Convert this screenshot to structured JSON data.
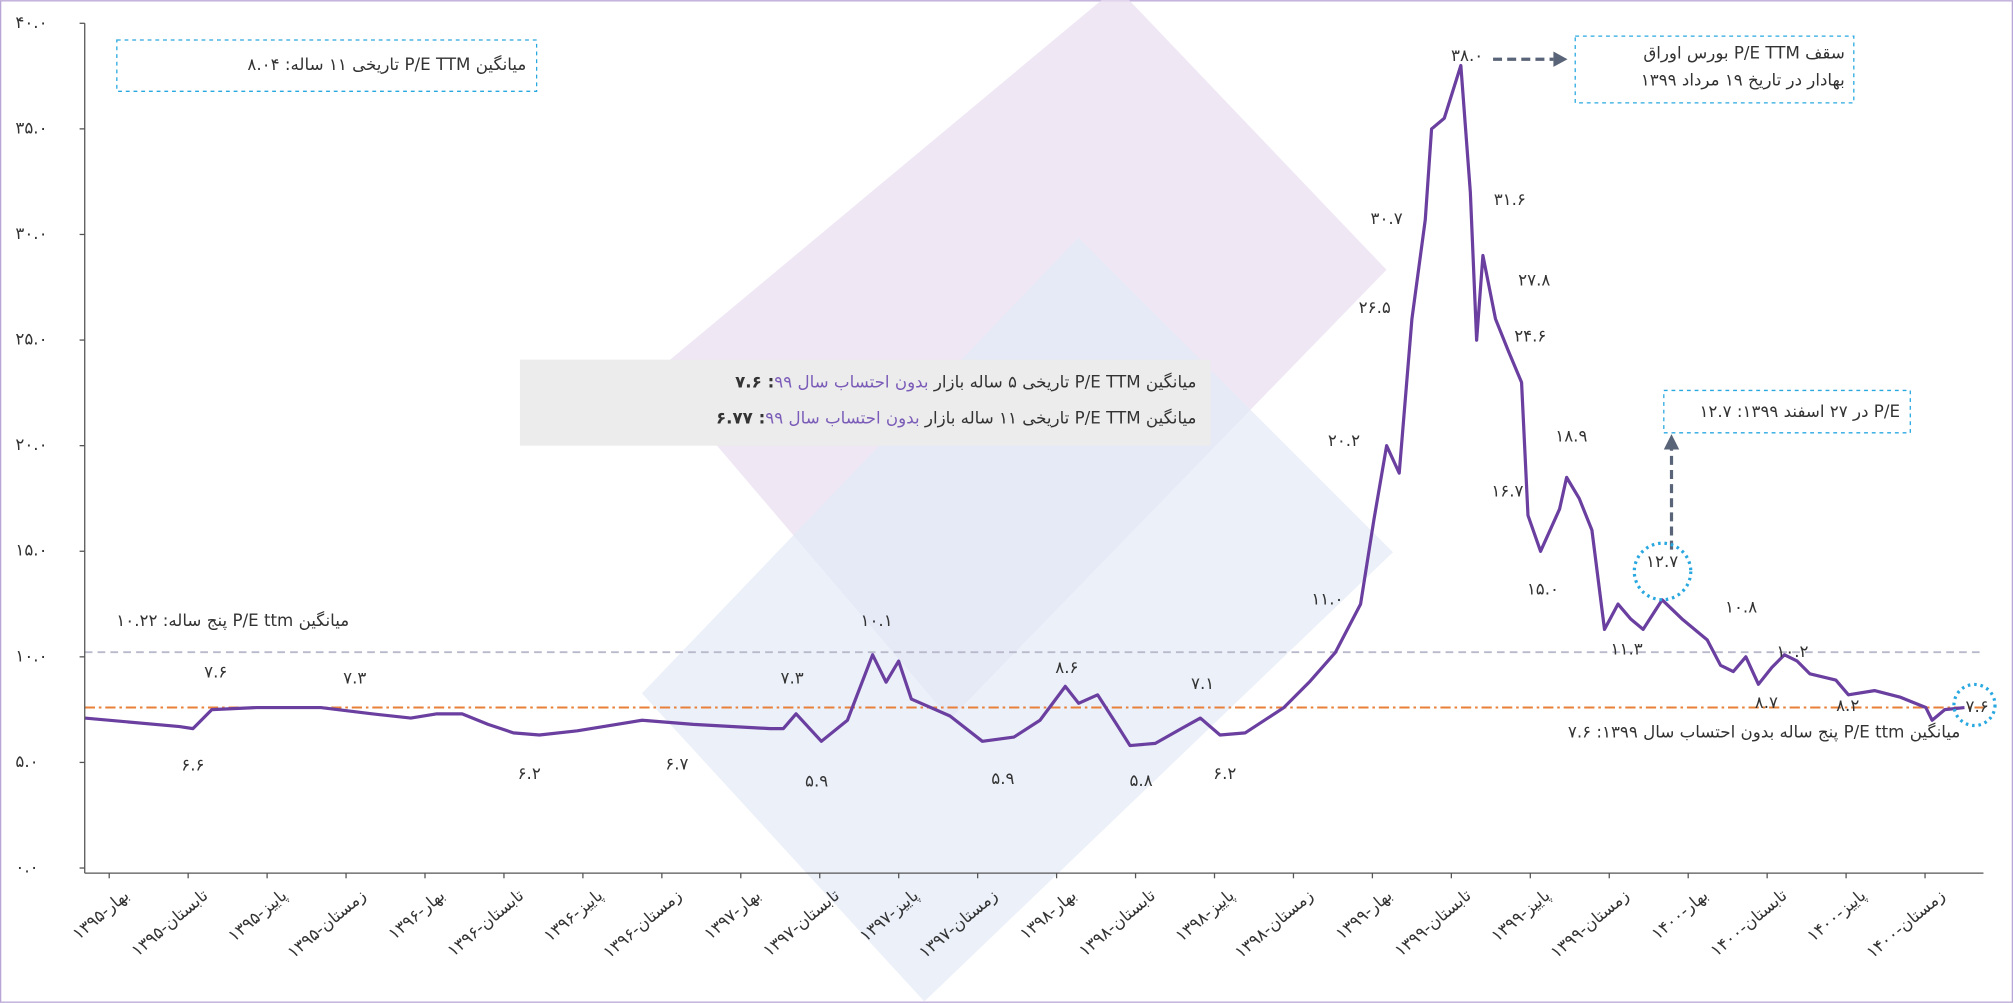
{
  "chart_data": {
    "type": "line",
    "color": "#6a3fa0",
    "xlim": [
      -0.31,
      23.74
    ],
    "ylim": [
      0,
      40
    ],
    "yticks": [
      {
        "value": 0,
        "label": "۰.۰"
      },
      {
        "value": 5,
        "label": "۵.۰"
      },
      {
        "value": 10,
        "label": "۱۰.۰"
      },
      {
        "value": 15,
        "label": "۱۵.۰"
      },
      {
        "value": 20,
        "label": "۲۰.۰"
      },
      {
        "value": 25,
        "label": "۲۵.۰"
      },
      {
        "value": 30,
        "label": "۳۰.۰"
      },
      {
        "value": 35,
        "label": "۳۵.۰"
      },
      {
        "value": 40,
        "label": "۴۰.۰"
      }
    ],
    "xticks": [
      {
        "value": 0,
        "label": "بهار-۱۳۹۵"
      },
      {
        "value": 1,
        "label": "تابستان-۱۳۹۵"
      },
      {
        "value": 2,
        "label": "پاییز-۱۳۹۵"
      },
      {
        "value": 3,
        "label": "زمستان-۱۳۹۵"
      },
      {
        "value": 4,
        "label": "بهار-۱۳۹۶"
      },
      {
        "value": 5,
        "label": "تابستان-۱۳۹۶"
      },
      {
        "value": 6,
        "label": "پاییز-۱۳۹۶"
      },
      {
        "value": 7,
        "label": "زمستان-۱۳۹۶"
      },
      {
        "value": 8,
        "label": "بهار-۱۳۹۷"
      },
      {
        "value": 9,
        "label": "تابستان-۱۳۹۷"
      },
      {
        "value": 10,
        "label": "پاییز-۱۳۹۷"
      },
      {
        "value": 11,
        "label": "زمستان-۱۳۹۷"
      },
      {
        "value": 12,
        "label": "بهار-۱۳۹۸"
      },
      {
        "value": 13,
        "label": "تابستان-۱۳۹۸"
      },
      {
        "value": 14,
        "label": "پاییز-۱۳۹۸"
      },
      {
        "value": 15,
        "label": "زمستان-۱۳۹۸"
      },
      {
        "value": 16,
        "label": "بهار-۱۳۹۹"
      },
      {
        "value": 17,
        "label": "تابستان-۱۳۹۹"
      },
      {
        "value": 18,
        "label": "پاییز-۱۳۹۹"
      },
      {
        "value": 19,
        "label": "زمستان-۱۳۹۹"
      },
      {
        "value": 20,
        "label": "بهار-۱۴۰۰"
      },
      {
        "value": 21,
        "label": "تابستان-۱۴۰۰"
      },
      {
        "value": 22,
        "label": "پاییز-۱۴۰۰"
      },
      {
        "value": 23,
        "label": "زمستان-۱۴۰۰"
      }
    ],
    "x": [
      -0.31,
      0.89,
      1.06,
      1.3,
      1.87,
      2.68,
      3.33,
      3.82,
      4.15,
      4.47,
      4.8,
      5.12,
      5.45,
      5.93,
      6.75,
      7.4,
      8.37,
      8.54,
      8.7,
      9.02,
      9.35,
      9.67,
      9.84,
      10.0,
      10.16,
      10.65,
      11.06,
      11.46,
      11.79,
      12.11,
      12.28,
      12.52,
      12.76,
      12.93,
      13.25,
      13.58,
      13.82,
      14.07,
      14.39,
      14.88,
      15.2,
      15.53,
      15.85,
      16.02,
      16.18,
      16.34,
      16.5,
      16.67,
      16.75,
      16.91,
      17.12,
      17.24,
      17.32,
      17.4,
      17.56,
      17.72,
      17.89,
      17.97,
      18.13,
      18.37,
      18.46,
      18.62,
      18.78,
      18.94,
      19.11,
      19.27,
      19.43,
      19.67,
      19.92,
      20.24,
      20.41,
      20.57,
      20.73,
      20.89,
      21.06,
      21.22,
      21.38,
      21.54,
      21.87,
      22.03,
      22.36,
      22.68,
      23.01,
      23.09,
      23.25,
      23.5
    ],
    "values": [
      7.1,
      6.7,
      6.6,
      7.5,
      7.6,
      7.6,
      7.3,
      7.1,
      7.3,
      7.3,
      6.8,
      6.4,
      6.3,
      6.5,
      7.0,
      6.8,
      6.6,
      6.6,
      7.3,
      6.0,
      7.0,
      10.1,
      8.8,
      9.8,
      8.0,
      7.2,
      6.0,
      6.2,
      7.0,
      8.6,
      7.8,
      8.2,
      6.8,
      5.8,
      5.9,
      6.6,
      7.1,
      6.3,
      6.4,
      7.6,
      8.8,
      10.2,
      12.5,
      16.5,
      20.0,
      18.7,
      26.0,
      30.7,
      35.0,
      35.5,
      38.0,
      32.0,
      25.0,
      29.0,
      26.0,
      24.5,
      23.0,
      16.7,
      15.0,
      17.0,
      18.5,
      17.5,
      16.0,
      11.3,
      12.5,
      11.8,
      11.3,
      12.7,
      11.8,
      10.8,
      9.6,
      9.3,
      10.0,
      8.7,
      9.5,
      10.1,
      9.8,
      9.2,
      8.9,
      8.2,
      8.4,
      8.1,
      7.6,
      7.0,
      7.5,
      7.6
    ],
    "point_labels": [
      {
        "x": 1.06,
        "value": 6.6,
        "label": "۶.۶"
      },
      {
        "x": 1.35,
        "value": 7.6,
        "label": "۷.۶"
      },
      {
        "x": 3.11,
        "value": 7.3,
        "label": "۷.۳"
      },
      {
        "x": 5.32,
        "value": 6.2,
        "label": "۶.۲"
      },
      {
        "x": 7.19,
        "value": 6.7,
        "label": "۶.۷"
      },
      {
        "x": 8.65,
        "value": 7.3,
        "label": "۷.۳"
      },
      {
        "x": 8.96,
        "value": 5.9,
        "label": "۵.۹"
      },
      {
        "x": 9.72,
        "value": 10.1,
        "label": "۱۰.۱"
      },
      {
        "x": 11.32,
        "value": 5.9,
        "label": "۵.۹"
      },
      {
        "x": 12.13,
        "value": 8.6,
        "label": "۸.۶"
      },
      {
        "x": 13.07,
        "value": 5.8,
        "label": "۵.۸"
      },
      {
        "x": 13.85,
        "value": 7.1,
        "label": "۷.۱"
      },
      {
        "x": 14.13,
        "value": 6.2,
        "label": "۶.۲"
      },
      {
        "x": 15.43,
        "value": 11.0,
        "label": "۱۱.۰"
      },
      {
        "x": 15.64,
        "value": 20.2,
        "label": "۲۰.۲"
      },
      {
        "x": 16.03,
        "value": 26.5,
        "label": "۲۶.۵"
      },
      {
        "x": 16.18,
        "value": 30.7,
        "label": "۳۰.۷"
      },
      {
        "x": 17.2,
        "value": 38.0,
        "label": "۳۸.۰"
      },
      {
        "x": 17.74,
        "value": 31.6,
        "label": "۳۱.۶"
      },
      {
        "x": 18.05,
        "value": 27.8,
        "label": "۲۷.۸"
      },
      {
        "x": 18.0,
        "value": 24.6,
        "label": "۲۴.۶"
      },
      {
        "x": 18.52,
        "value": 18.9,
        "label": "۱۸.۹"
      },
      {
        "x": 17.71,
        "value": 16.7,
        "label": "۱۶.۷"
      },
      {
        "x": 18.16,
        "value": 15.0,
        "label": "۱۵.۰"
      },
      {
        "x": 19.67,
        "value": 12.7,
        "label": "۱۲.۷"
      },
      {
        "x": 20.67,
        "value": 10.8,
        "label": "۱۰.۸"
      },
      {
        "x": 19.22,
        "value": 11.3,
        "label": "۱۱.۳"
      },
      {
        "x": 21.32,
        "value": 10.2,
        "label": "۱۰.۲"
      },
      {
        "x": 20.99,
        "value": 8.7,
        "label": "۸.۷"
      },
      {
        "x": 22.02,
        "value": 8.2,
        "label": "۸.۲"
      },
      {
        "x": 23.66,
        "value": 7.6,
        "label": "۷.۶"
      }
    ],
    "reference_lines": [
      {
        "value": 10.22,
        "color": "#b9b9cc",
        "label": "میانگین  P/E ttm پنج ساله: ۱۰.۲۲"
      },
      {
        "value": 7.6,
        "color": "#e8803a",
        "label": "میانگین P/E ttm پنج ساله بدون احتساب سال ۱۳۹۹: ۷.۶"
      }
    ],
    "annotations": {
      "eleven_year_average": "میانگین P/E TTM  تاریخی ۱۱ ساله: ۸.۰۴",
      "peak_note": [
        "سقف  P/E TTM بورس اوراق",
        "بهادار در تاریخ ۱۹ مرداد ۱۳۹۹"
      ],
      "last_pe_note": "P/E در ۲۷ اسفند ۱۳۹۹: ۱۲.۷",
      "five_year_line": [
        "میانگین P/E TTM تاریخی ۵ ساله بازار ",
        "بدون احتساب سال ۹۹",
        ": ۷.۶"
      ],
      "eleven_year_line": [
        "میانگین P/E TTM  تاریخی ۱۱ ساله بازار ",
        "بدون احتساب سال ۹۹",
        ": ۶.۷۷"
      ]
    }
  }
}
